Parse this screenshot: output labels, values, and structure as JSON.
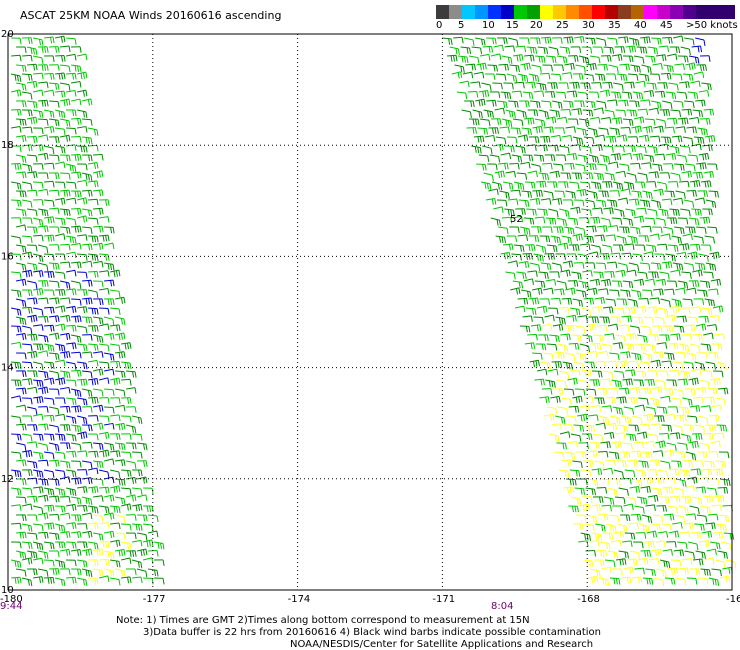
{
  "title": "ASCAT 25KM NOAA Winds 20160616 ascending",
  "scale": {
    "colors": [
      "#3c3c3c",
      "#8c8c8c",
      "#00c8ff",
      "#0096ff",
      "#0032ff",
      "#0000c8",
      "#00c800",
      "#00a000",
      "#ffff00",
      "#ffc800",
      "#ff8c00",
      "#ff5000",
      "#ff0000",
      "#b40000",
      "#8c3c1e",
      "#b46400",
      "#ff00ff",
      "#c800c8",
      "#8c00b4",
      "#50008c",
      "#32006e",
      "#32006e",
      "#32006e"
    ],
    "labels": [
      "0",
      "5",
      "10",
      "15",
      "20",
      "25",
      "30",
      "35",
      "40",
      "45",
      ">50 knots"
    ]
  },
  "axes": {
    "x_ticks": [
      "-180",
      "-177",
      "-174",
      "-171",
      "-168",
      "-16"
    ],
    "y_ticks": [
      "20",
      "18",
      "16",
      "14",
      "12",
      "10"
    ],
    "x_range": [
      -180,
      -165
    ],
    "y_range": [
      10,
      20
    ]
  },
  "time_labels": [
    "9:44",
    "8:04"
  ],
  "rain_flag": "52",
  "notes": {
    "line1": "Note: 1) Times are GMT 2)Times along bottom correspond to measurement at 15N",
    "line2": "3)Data buffer is 22 hrs from 20160616 4) Black wind barbs indicate possible contamination",
    "line3": "NOAA/NESDIS/Center for Satellite Applications and Research"
  },
  "colors": {
    "dark_green": "#008c00",
    "green": "#00c800",
    "blue": "#0000d2",
    "yellow": "#ffff28",
    "time_label": "#6b006b"
  }
}
